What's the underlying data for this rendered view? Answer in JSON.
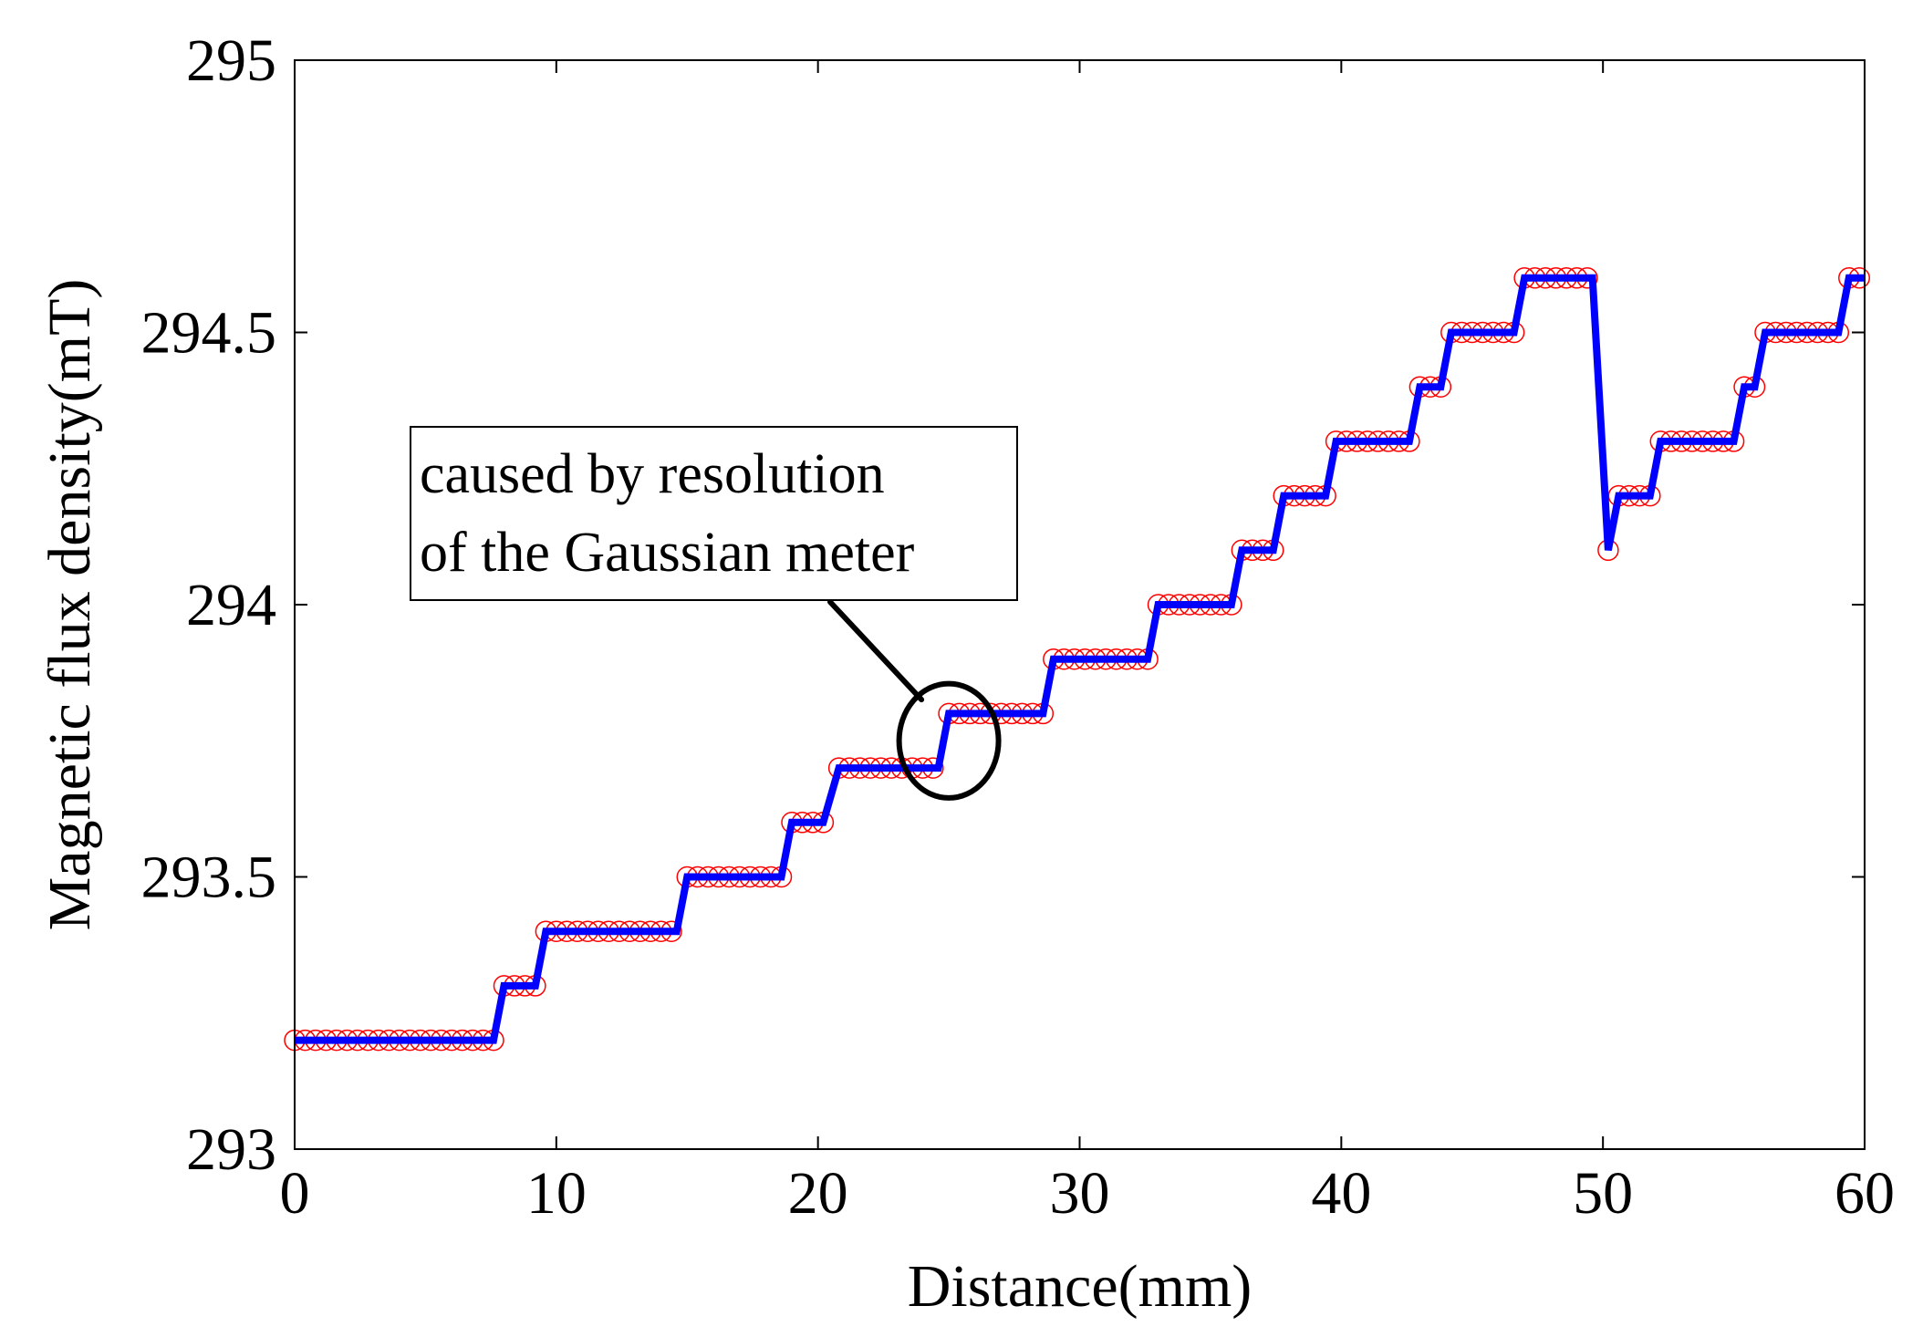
{
  "chart_data": {
    "type": "line",
    "title": "",
    "xlabel": "Distance(mm)",
    "ylabel": "Magnetic flux density(mT)",
    "xlim": [
      0,
      60
    ],
    "ylim": [
      293,
      295
    ],
    "xticks": [
      0,
      10,
      20,
      30,
      40,
      50,
      60
    ],
    "yticks": [
      293,
      293.5,
      294,
      294.5,
      295
    ],
    "xtick_labels": [
      "0",
      "10",
      "20",
      "30",
      "40",
      "50",
      "60"
    ],
    "ytick_labels": [
      "293",
      "293.5",
      "294",
      "294.5",
      "295"
    ],
    "grid": false,
    "colors": {
      "line": "#0000FF",
      "markers": "#FF0000",
      "axes": "#000000",
      "annotation": "#000000"
    },
    "series": [
      {
        "name": "Magnetic flux density",
        "style": "line",
        "points": [
          [
            0,
            293.2
          ],
          [
            7.6,
            293.2
          ],
          [
            8.0,
            293.3
          ],
          [
            9.2,
            293.3
          ],
          [
            9.6,
            293.4
          ],
          [
            14.6,
            293.4
          ],
          [
            15.0,
            293.5
          ],
          [
            18.6,
            293.5
          ],
          [
            19.0,
            293.6
          ],
          [
            20.2,
            293.6
          ],
          [
            20.8,
            293.7
          ],
          [
            24.6,
            293.7
          ],
          [
            25.0,
            293.8
          ],
          [
            28.6,
            293.8
          ],
          [
            29.0,
            293.9
          ],
          [
            32.6,
            293.9
          ],
          [
            33.0,
            294.0
          ],
          [
            35.8,
            294.0
          ],
          [
            36.2,
            294.1
          ],
          [
            37.4,
            294.1
          ],
          [
            37.8,
            294.2
          ],
          [
            39.4,
            294.2
          ],
          [
            39.8,
            294.3
          ],
          [
            42.6,
            294.3
          ],
          [
            43.0,
            294.4
          ],
          [
            43.8,
            294.4
          ],
          [
            44.2,
            294.5
          ],
          [
            46.6,
            294.5
          ],
          [
            47.0,
            294.6
          ],
          [
            49.6,
            294.6
          ],
          [
            50.2,
            294.1
          ],
          [
            50.6,
            294.2
          ],
          [
            51.8,
            294.2
          ],
          [
            52.2,
            294.3
          ],
          [
            55.0,
            294.3
          ],
          [
            55.4,
            294.4
          ],
          [
            55.8,
            294.4
          ],
          [
            56.2,
            294.5
          ],
          [
            59.0,
            294.5
          ],
          [
            59.4,
            294.6
          ],
          [
            60.0,
            294.6
          ]
        ]
      },
      {
        "name": "Measured points",
        "style": "open-circle-markers",
        "sampling_step_mm": 0.4,
        "x_range": [
          0,
          60
        ],
        "levels": [
          {
            "x_from": 0,
            "x_to": 7.6,
            "y": 293.2
          },
          {
            "x_from": 8.0,
            "x_to": 9.2,
            "y": 293.3
          },
          {
            "x_from": 9.6,
            "x_to": 14.6,
            "y": 293.4
          },
          {
            "x_from": 15.0,
            "x_to": 18.6,
            "y": 293.5
          },
          {
            "x_from": 19.0,
            "x_to": 20.2,
            "y": 293.6
          },
          {
            "x_from": 20.8,
            "x_to": 24.6,
            "y": 293.7
          },
          {
            "x_from": 25.0,
            "x_to": 28.6,
            "y": 293.8
          },
          {
            "x_from": 29.0,
            "x_to": 32.6,
            "y": 293.9
          },
          {
            "x_from": 33.0,
            "x_to": 35.8,
            "y": 294.0
          },
          {
            "x_from": 36.2,
            "x_to": 37.4,
            "y": 294.1
          },
          {
            "x_from": 37.8,
            "x_to": 39.4,
            "y": 294.2
          },
          {
            "x_from": 39.8,
            "x_to": 42.6,
            "y": 294.3
          },
          {
            "x_from": 43.0,
            "x_to": 43.8,
            "y": 294.4
          },
          {
            "x_from": 44.2,
            "x_to": 46.6,
            "y": 294.5
          },
          {
            "x_from": 47.0,
            "x_to": 49.6,
            "y": 294.6
          },
          {
            "x_from": 50.2,
            "x_to": 50.2,
            "y": 294.1
          },
          {
            "x_from": 50.6,
            "x_to": 51.8,
            "y": 294.2
          },
          {
            "x_from": 52.2,
            "x_to": 55.0,
            "y": 294.3
          },
          {
            "x_from": 55.4,
            "x_to": 55.8,
            "y": 294.4
          },
          {
            "x_from": 56.2,
            "x_to": 59.0,
            "y": 294.5
          },
          {
            "x_from": 59.4,
            "x_to": 60.0,
            "y": 294.6
          }
        ]
      }
    ],
    "annotation": {
      "lines": [
        "caused by resolution",
        "of the Gaussian meter"
      ],
      "target": {
        "x": 25.0,
        "y": 293.75
      },
      "target_radius_data": {
        "x": 1.9,
        "y": 0.105
      }
    }
  }
}
